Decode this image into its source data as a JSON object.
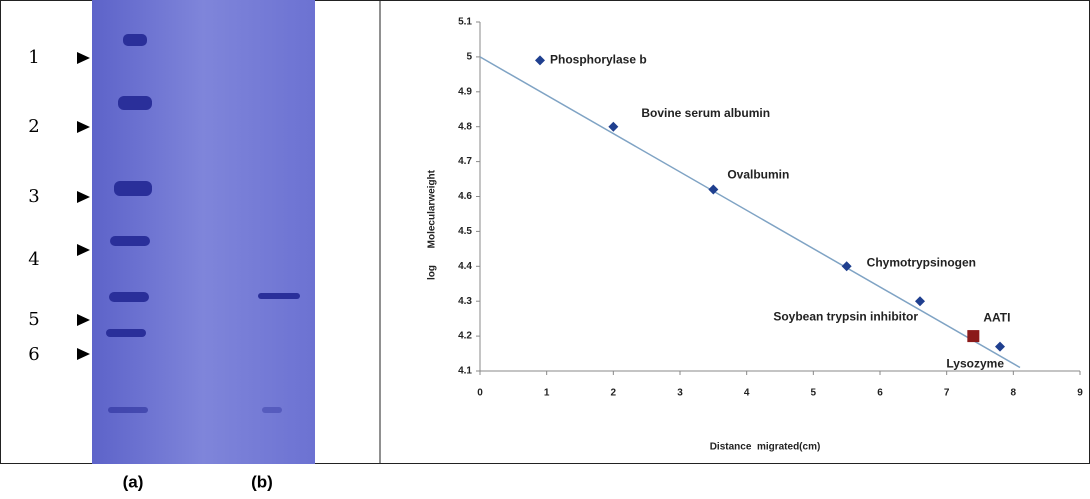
{
  "gel": {
    "markers": [
      "1",
      "2",
      "3",
      "4",
      "5",
      "6"
    ],
    "lanes": [
      "(a)",
      "(b)"
    ]
  },
  "chart_data": {
    "type": "scatter",
    "xlabel": "Distance  migrated(cm)",
    "ylabel": "log      Molecularweight",
    "xlim": [
      0,
      9
    ],
    "ylim": [
      4.1,
      5.1
    ],
    "xticks": [
      0,
      1,
      2,
      3,
      4,
      5,
      6,
      7,
      8,
      9
    ],
    "yticks": [
      4.1,
      4.2,
      4.3,
      4.4,
      4.5,
      4.6,
      4.7,
      4.8,
      4.9,
      5,
      5.1
    ],
    "series": [
      {
        "color": "#1f3f8f",
        "marker": "diamond",
        "labels": [
          "Phosphorylase b",
          "Bovine serum albumin",
          "Ovalbumin",
          "Chymotrypsinogen",
          "Soybean trypsin inhibitor",
          "Lysozyme"
        ],
        "x": [
          0.9,
          2,
          3.5,
          5.5,
          6.6,
          7.8
        ],
        "values": [
          4.99,
          4.8,
          4.62,
          4.4,
          4.3,
          4.17
        ]
      },
      {
        "color": "#8b1a1a",
        "marker": "square",
        "labels": [
          "AATI"
        ],
        "x": [
          7.4
        ],
        "values": [
          4.2
        ]
      }
    ],
    "trendline": {
      "color": "#7fa3c4",
      "x": [
        0,
        8.1
      ],
      "values": [
        5.0,
        4.11
      ]
    }
  }
}
